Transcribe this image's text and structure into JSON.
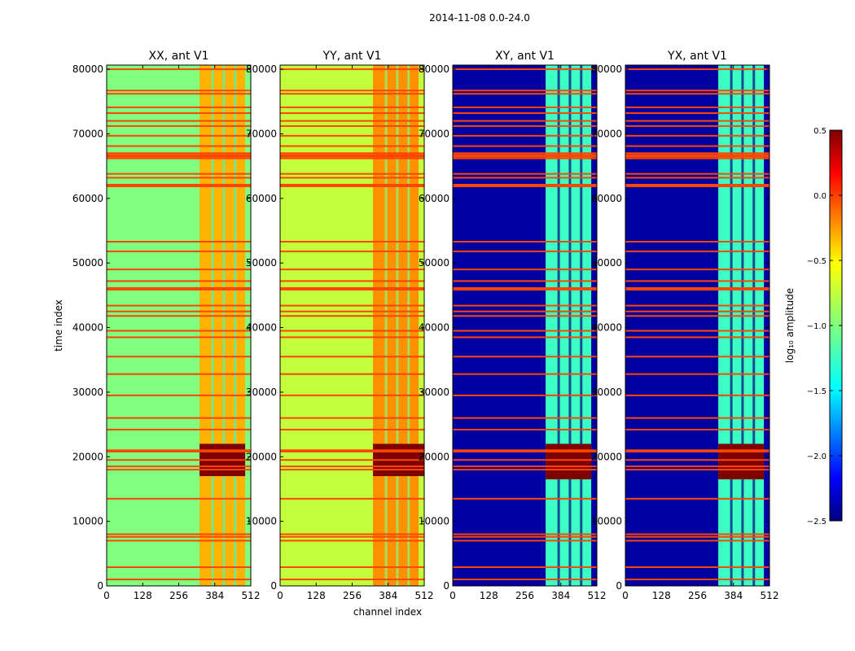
{
  "figure": {
    "suptitle": "2014-11-08 0.0-24.0",
    "xlabel": "channel index",
    "ylabel": "time index"
  },
  "chart_data": {
    "type": "heatmap",
    "colormap": "jet",
    "x_ticks": [
      0,
      128,
      256,
      384,
      512
    ],
    "y_ticks": [
      0,
      10000,
      20000,
      30000,
      40000,
      50000,
      60000,
      70000,
      80000
    ],
    "xlim": [
      0,
      512
    ],
    "ylim": [
      0,
      80640
    ],
    "rfi_band_channels": [
      330,
      492
    ],
    "flagged_time_rows": [
      1000,
      2900,
      7000,
      7600,
      8000,
      13500,
      18000,
      18500,
      19500,
      20800,
      21000,
      24200,
      26000,
      29500,
      32800,
      35500,
      38500,
      39500,
      41800,
      42500,
      43400,
      46000,
      47200,
      49000,
      51800,
      53300,
      61900,
      63200,
      63800,
      66200,
      67000,
      68100,
      69700,
      71200,
      72000,
      73200,
      74100,
      76200,
      76700,
      80000
    ],
    "panels": [
      {
        "title": "XX, ant V1",
        "baseline": -1.0,
        "band_level": -0.4,
        "burst_rows": [
          17000,
          22000
        ],
        "burst_channels": [
          330,
          492
        ]
      },
      {
        "title": "YY, ant V1",
        "baseline": -0.8,
        "band_level": -0.3,
        "burst_rows": [
          17000,
          22000
        ],
        "burst_channels": [
          330,
          512
        ]
      },
      {
        "title": "XY, ant V1",
        "baseline": -2.4,
        "band_level": -1.2,
        "burst_rows": [
          16500,
          22000
        ],
        "burst_channels": [
          330,
          492
        ]
      },
      {
        "title": "YX, ant V1",
        "baseline": -2.4,
        "band_level": -1.2,
        "burst_rows": [
          16500,
          22000
        ],
        "burst_channels": [
          330,
          492
        ]
      }
    ],
    "colorbar": {
      "label": "log₁₀ amplitude",
      "range": [
        -2.5,
        0.5
      ],
      "ticks": [
        0.5,
        0.0,
        -0.5,
        -1.0,
        -1.5,
        -2.0,
        -2.5
      ],
      "tick_labels": [
        "0.5",
        "0.0",
        "−0.5",
        "−1.0",
        "−1.5",
        "−2.0",
        "−2.5"
      ]
    },
    "y_tick_labels": [
      "0",
      "10000",
      "20000",
      "30000",
      "40000",
      "50000",
      "60000",
      "70000",
      "80000"
    ],
    "x_tick_labels": [
      "0",
      "128",
      "256",
      "384",
      "512"
    ]
  }
}
